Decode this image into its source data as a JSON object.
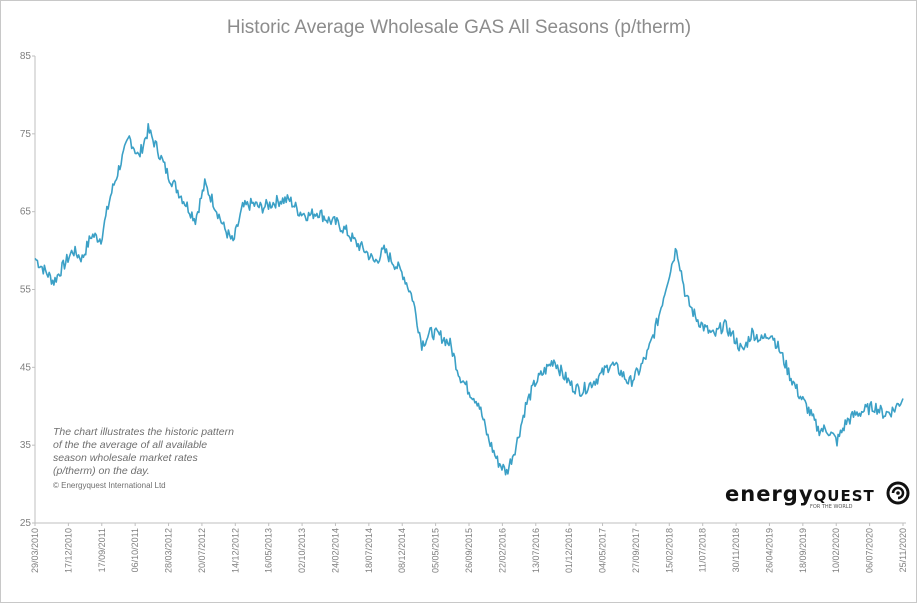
{
  "chart_data": {
    "type": "line",
    "title": "Historic Average Wholesale GAS All Seasons (p/therm)",
    "xlabel": "",
    "ylabel": "",
    "ylim": [
      25,
      85
    ],
    "yticks": [
      "25",
      "35",
      "45",
      "55",
      "65",
      "75",
      "85"
    ],
    "xticks": [
      "29/03/2010",
      "17/12/2010",
      "17/09/2011",
      "06/10/2011",
      "28/03/2012",
      "20/07/2012",
      "14/12/2012",
      "16/05/2013",
      "02/10/2013",
      "24/02/2014",
      "18/07/2014",
      "08/12/2014",
      "05/05/2015",
      "26/09/2015",
      "22/02/2016",
      "13/07/2016",
      "01/12/2016",
      "04/05/2017",
      "27/09/2017",
      "15/02/2018",
      "11/07/2018",
      "30/11/2018",
      "26/04/2019",
      "18/09/2019",
      "10/02/2020",
      "06/07/2020",
      "25/11/2020"
    ],
    "grid": false,
    "legend": "none",
    "series": [
      {
        "color": "#3ba0c6",
        "points": [
          [
            0,
            59
          ],
          [
            1,
            57.5
          ],
          [
            2,
            56
          ],
          [
            3,
            58
          ],
          [
            4,
            60
          ],
          [
            5,
            59
          ],
          [
            6,
            62
          ],
          [
            7,
            61.5
          ],
          [
            8,
            67
          ],
          [
            9,
            71
          ],
          [
            10,
            74.5
          ],
          [
            11,
            72
          ],
          [
            12,
            75.5
          ],
          [
            13,
            73
          ],
          [
            14,
            70
          ],
          [
            15,
            68
          ],
          [
            16,
            66
          ],
          [
            17,
            64
          ],
          [
            18,
            68.5
          ],
          [
            19,
            66
          ],
          [
            20,
            63
          ],
          [
            21,
            61
          ],
          [
            22,
            65.5
          ],
          [
            23,
            66
          ],
          [
            24,
            65.5
          ],
          [
            25,
            66
          ],
          [
            26,
            66.5
          ],
          [
            27,
            66.5
          ],
          [
            28,
            65
          ],
          [
            29,
            64.5
          ],
          [
            30,
            65
          ],
          [
            31,
            64
          ],
          [
            32,
            63.5
          ],
          [
            33,
            62.5
          ],
          [
            34,
            61
          ],
          [
            35,
            60
          ],
          [
            36,
            58.5
          ],
          [
            37,
            60
          ],
          [
            38,
            58.5
          ],
          [
            39,
            57
          ],
          [
            40,
            54
          ],
          [
            41,
            48
          ],
          [
            42,
            49.5
          ],
          [
            43,
            49
          ],
          [
            44,
            48
          ],
          [
            45,
            44
          ],
          [
            46,
            42
          ],
          [
            47,
            40.5
          ],
          [
            48,
            36
          ],
          [
            49,
            33
          ],
          [
            50,
            31.5
          ],
          [
            51,
            35
          ],
          [
            52,
            40
          ],
          [
            53,
            43
          ],
          [
            54,
            44.5
          ],
          [
            55,
            46
          ],
          [
            56,
            44
          ],
          [
            57,
            42.5
          ],
          [
            58,
            42
          ],
          [
            59,
            43
          ],
          [
            60,
            44
          ],
          [
            61,
            45.5
          ],
          [
            62,
            44.5
          ],
          [
            63,
            43
          ],
          [
            64,
            44.5
          ],
          [
            65,
            47
          ],
          [
            66,
            51
          ],
          [
            67,
            56
          ],
          [
            68,
            60.5
          ],
          [
            69,
            54
          ],
          [
            70,
            51.5
          ],
          [
            71,
            50
          ],
          [
            72,
            49
          ],
          [
            73,
            50.5
          ],
          [
            74,
            49
          ],
          [
            75,
            47
          ],
          [
            76,
            49.5
          ],
          [
            77,
            48.5
          ],
          [
            78,
            49.5
          ],
          [
            79,
            47
          ],
          [
            80,
            44
          ],
          [
            81,
            41.5
          ],
          [
            82,
            39.5
          ],
          [
            83,
            37
          ],
          [
            84,
            37
          ],
          [
            85,
            35.5
          ],
          [
            86,
            38
          ],
          [
            87,
            39
          ],
          [
            88,
            39.5
          ],
          [
            89,
            40
          ],
          [
            90,
            39
          ],
          [
            91,
            39.5
          ],
          [
            92,
            41
          ]
        ]
      }
    ]
  },
  "note": {
    "lines": [
      "The chart illustrates the historic pattern",
      "of the the average of all available",
      "season wholesale market rates",
      "(p/therm) on the day."
    ],
    "copyright": "© Energyquest International Ltd"
  },
  "logo": {
    "word1": "energy",
    "word2": "QUEST",
    "tagline": "FOR THE WORLD"
  }
}
